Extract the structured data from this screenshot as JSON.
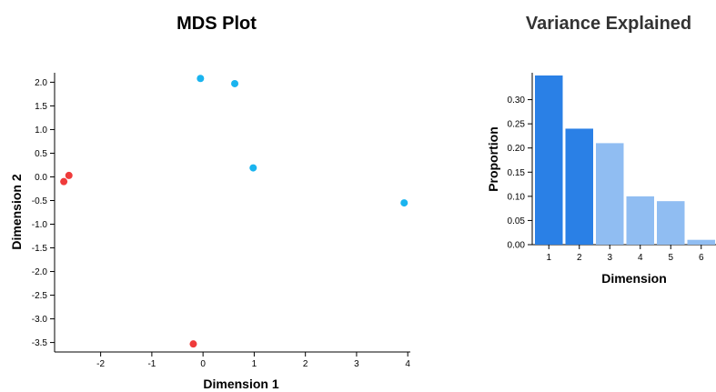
{
  "chart_data": [
    {
      "type": "scatter",
      "title": "MDS Plot",
      "xlabel": "Dimension 1",
      "ylabel": "Dimension 2",
      "xlim": [
        -2.9,
        4.05
      ],
      "ylim": [
        -3.7,
        2.2
      ],
      "xticks": [
        -2,
        -1,
        0,
        1,
        2,
        3,
        4
      ],
      "yticks": [
        2.0,
        1.5,
        1.0,
        0.5,
        0.0,
        -0.5,
        -1.0,
        -1.5,
        -2.0,
        -2.5,
        -3.0,
        -3.5
      ],
      "points": [
        {
          "x": -0.05,
          "y": 2.08,
          "color": "#1ab4ef"
        },
        {
          "x": 0.62,
          "y": 1.97,
          "color": "#1ab4ef"
        },
        {
          "x": 0.98,
          "y": 0.19,
          "color": "#1ab4ef"
        },
        {
          "x": 3.93,
          "y": -0.55,
          "color": "#1ab4ef"
        },
        {
          "x": -2.62,
          "y": 0.03,
          "color": "#ef3b3b"
        },
        {
          "x": -2.72,
          "y": -0.1,
          "color": "#ef3b3b"
        },
        {
          "x": -0.19,
          "y": -3.53,
          "color": "#ef3b3b"
        }
      ]
    },
    {
      "type": "bar",
      "title": "Variance Explained",
      "xlabel": "Dimension",
      "ylabel": "Proportion",
      "categories": [
        "1",
        "2",
        "3",
        "4",
        "5",
        "6"
      ],
      "values": [
        0.35,
        0.24,
        0.21,
        0.1,
        0.09,
        0.01
      ],
      "colors": [
        "#2a80e6",
        "#2a80e6",
        "#90bdf2",
        "#90bdf2",
        "#90bdf2",
        "#90bdf2"
      ],
      "ylim": [
        0,
        0.35
      ],
      "yticks": [
        "0.00",
        "0.05",
        "0.10",
        "0.15",
        "0.20",
        "0.25",
        "0.30"
      ]
    }
  ],
  "colors": {
    "title_left": "#000000",
    "title_right": "#333333"
  }
}
